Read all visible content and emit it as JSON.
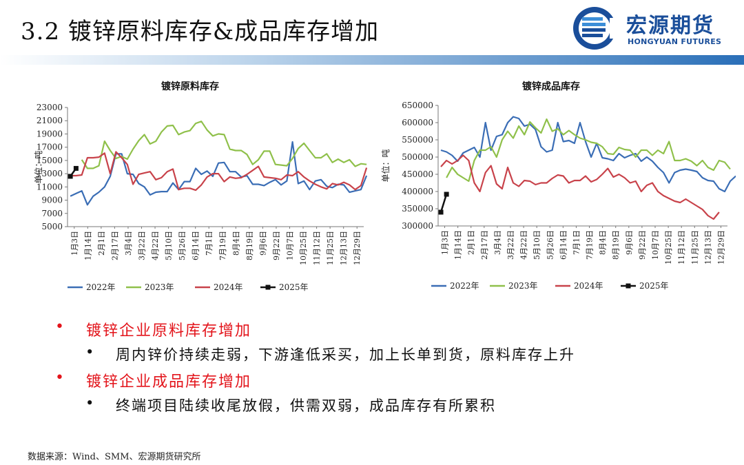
{
  "slide": {
    "title": "3.2 镀锌原料库存&成品库存增加",
    "source": "数据来源：Wind、SMM、宏源期货研究所"
  },
  "logo": {
    "cn": "宏源期货",
    "en": "HONGYUAN FUTURES",
    "colors": {
      "primary": "#1a4e9a",
      "accent": "#3c8ed8"
    }
  },
  "bullets": [
    {
      "marker": "•",
      "heading": "镀锌企业原料库存增加",
      "detail_marker": "•",
      "detail": "周内锌价持续走弱，下游逢低采买，加上长单到货，原料库存上升"
    },
    {
      "marker": "•",
      "heading": "镀锌企业成品库存增加",
      "detail_marker": "•",
      "detail": "终端项目陆续收尾放假，供需双弱，成品库存有所累积"
    }
  ],
  "chart_data": [
    {
      "type": "line",
      "title": "镀锌原料库存",
      "ylabel": "单位：吨",
      "ylim": [
        5000,
        23000
      ],
      "yticks": [
        5000,
        7000,
        9000,
        11000,
        13000,
        15000,
        17000,
        19000,
        21000,
        23000
      ],
      "ytick_labels": [
        "5000",
        "7000",
        "9000",
        "11000",
        "13000",
        "15000",
        "17000",
        "19000",
        "21000",
        "23000"
      ],
      "xtick_labels": [
        "1月3日",
        "1月14日",
        "2月1日",
        "2月17日",
        "3月4日",
        "3月22日",
        "4月22日",
        "5月10日",
        "5月26日",
        "6月14日",
        "7月1日",
        "7月19日",
        "8月4日",
        "8月19日",
        "9月6日",
        "9月22日",
        "10月7日",
        "10月25日",
        "11月12日",
        "11月25日",
        "12月13日",
        "12月29日"
      ],
      "n_weeks": 52,
      "legend_position": "bottom",
      "series": [
        {
          "name": "2022年",
          "color": "#3a6db5",
          "values": [
            9600,
            10000,
            10400,
            8300,
            9600,
            10200,
            11000,
            12600,
            16000,
            16000,
            13000,
            12900,
            11500,
            11000,
            9800,
            10200,
            10300,
            10300,
            11600,
            10600,
            11800,
            11800,
            13800,
            12900,
            13400,
            12600,
            14600,
            14700,
            13300,
            13300,
            12500,
            12700,
            11400,
            11400,
            11200,
            11700,
            12100,
            11300,
            11900,
            17800,
            11500,
            11900,
            10600,
            11900,
            12100,
            11100,
            10900,
            11400,
            11300,
            10200,
            10400,
            10600,
            12700
          ]
        },
        {
          "name": "2023年",
          "color": "#8fc04a",
          "values": [
            null,
            null,
            15100,
            13800,
            13800,
            14200,
            17900,
            16500,
            15300,
            15600,
            15200,
            16700,
            18000,
            18900,
            17500,
            17900,
            19300,
            20200,
            20300,
            18900,
            19300,
            19500,
            20600,
            20900,
            19600,
            18700,
            19000,
            18900,
            16700,
            16500,
            16500,
            15900,
            14400,
            15100,
            16400,
            16400,
            14400,
            14300,
            14200,
            15300,
            16800,
            17600,
            16500,
            15400,
            15400,
            16000,
            14700,
            15200,
            14700,
            15100,
            14100,
            14500,
            14400
          ]
        },
        {
          "name": "2024年",
          "color": "#c8424a",
          "values": [
            12700,
            12700,
            12800,
            15400,
            15400,
            15500,
            16100,
            13000,
            16300,
            15400,
            14400,
            11400,
            12900,
            13100,
            13300,
            12100,
            12400,
            13300,
            13700,
            10600,
            10800,
            10800,
            10500,
            11300,
            12500,
            13000,
            13000,
            11800,
            12500,
            12300,
            12400,
            12900,
            13500,
            14100,
            12500,
            12400,
            12300,
            12100,
            12800,
            12700,
            13300,
            12500,
            11900,
            11400,
            11000,
            10700,
            11500,
            11300,
            11700,
            11300,
            10600,
            11200,
            13900
          ]
        },
        {
          "name": "2025年",
          "color": "#111111",
          "values": [
            12600,
            13800
          ]
        }
      ]
    },
    {
      "type": "line",
      "title": "镀锌成品库存",
      "ylabel": "单位：吨",
      "ylim": [
        300000,
        650000
      ],
      "yticks": [
        300000,
        350000,
        400000,
        450000,
        500000,
        550000,
        600000,
        650000
      ],
      "ytick_labels": [
        "300000",
        "350000",
        "400000",
        "450000",
        "500000",
        "550000",
        "600000",
        "650000"
      ],
      "xtick_labels": [
        "1月3日",
        "1月14日",
        "2月1日",
        "2月17日",
        "3月4日",
        "3月22日",
        "4月22日",
        "5月10日",
        "5月26日",
        "6月14日",
        "7月1日",
        "7月19日",
        "8月4日",
        "8月19日",
        "9月6日",
        "9月22日",
        "10月7日",
        "10月25日",
        "11月12日",
        "11月25日",
        "12月13日",
        "12月29日"
      ],
      "n_weeks": 52,
      "legend_position": "bottom",
      "series": [
        {
          "name": "2022年",
          "color": "#3a6db5",
          "values": [
            520000,
            515000,
            505000,
            488000,
            512000,
            520000,
            528000,
            500000,
            600000,
            520000,
            560000,
            565000,
            600000,
            617000,
            612000,
            590000,
            595000,
            580000,
            530000,
            515000,
            520000,
            600000,
            545000,
            548000,
            540000,
            600000,
            545000,
            500000,
            540000,
            498000,
            495000,
            490000,
            510000,
            498000,
            505000,
            510000,
            488000,
            500000,
            488000,
            470000,
            455000,
            425000,
            455000,
            462000,
            465000,
            462000,
            458000,
            440000,
            432000,
            430000,
            408000,
            400000,
            430000,
            445000
          ]
        },
        {
          "name": "2023年",
          "color": "#8fc04a",
          "values": [
            null,
            440000,
            470000,
            450000,
            440000,
            430000,
            490000,
            520000,
            520000,
            530000,
            500000,
            550000,
            575000,
            555000,
            590000,
            565000,
            602000,
            585000,
            570000,
            610000,
            575000,
            582000,
            565000,
            577000,
            565000,
            555000,
            550000,
            543000,
            540000,
            530000,
            510000,
            508000,
            528000,
            522000,
            520000,
            500000,
            520000,
            520000,
            505000,
            520000,
            510000,
            545000,
            490000,
            490000,
            495000,
            488000,
            475000,
            490000,
            470000,
            462000,
            490000,
            485000,
            465000
          ]
        },
        {
          "name": "2024年",
          "color": "#c8424a",
          "values": [
            472000,
            490000,
            480000,
            490000,
            505000,
            490000,
            425000,
            400000,
            455000,
            475000,
            422000,
            408000,
            470000,
            425000,
            415000,
            432000,
            430000,
            420000,
            425000,
            425000,
            438000,
            448000,
            445000,
            425000,
            432000,
            432000,
            445000,
            428000,
            435000,
            450000,
            467000,
            442000,
            450000,
            440000,
            425000,
            430000,
            400000,
            418000,
            425000,
            400000,
            388000,
            380000,
            372000,
            368000,
            378000,
            368000,
            358000,
            348000,
            330000,
            320000,
            340000
          ]
        },
        {
          "name": "2025年",
          "color": "#111111",
          "values": [
            340000,
            392000
          ]
        }
      ]
    }
  ]
}
